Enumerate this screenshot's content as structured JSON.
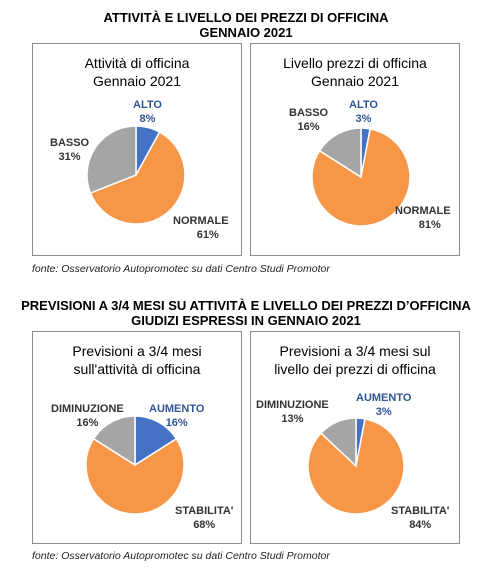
{
  "section1": {
    "title_line1": "ATTIVITÀ E LIVELLO DEI PREZZI DI OFFICINA",
    "title_line2": "GENNAIO 2021",
    "source": "fonte: Osservatorio Autopromotec su dati Centro Studi Promotor"
  },
  "section2": {
    "title_line1": "PREVISIONI A 3/4 MESI SU ATTIVITÀ E LIVELLO DEI PREZZI D’OFFICINA",
    "title_line2": "GIUDIZI ESPRESSI IN GENNAIO 2021",
    "source": "fonte: Osservatorio Autopromotec su dati Centro Studi Promotor"
  },
  "colors": {
    "blue": "#4472c4",
    "orange": "#f79646",
    "gray": "#a5a5a5"
  },
  "chart_data": [
    {
      "type": "pie",
      "title_line1": "Attività di officina",
      "title_line2": "Gennaio 2021",
      "slices": [
        {
          "label": "ALTO",
          "value": 8,
          "value_label": "8%",
          "color": "#4472c4"
        },
        {
          "label": "NORMALE",
          "value": 61,
          "value_label": "61%",
          "color": "#f79646"
        },
        {
          "label": "BASSO",
          "value": 31,
          "value_label": "31%",
          "color": "#a5a5a5"
        }
      ]
    },
    {
      "type": "pie",
      "title_line1": "Livello prezzi di officina",
      "title_line2": "Gennaio 2021",
      "slices": [
        {
          "label": "ALTO",
          "value": 3,
          "value_label": "3%",
          "color": "#4472c4"
        },
        {
          "label": "NORMALE",
          "value": 81,
          "value_label": "81%",
          "color": "#f79646"
        },
        {
          "label": "BASSO",
          "value": 16,
          "value_label": "16%",
          "color": "#a5a5a5"
        }
      ]
    },
    {
      "type": "pie",
      "title_line1": "Previsioni a 3/4 mesi",
      "title_line2": "sull'attività di officina",
      "slices": [
        {
          "label": "AUMENTO",
          "value": 16,
          "value_label": "16%",
          "color": "#4472c4"
        },
        {
          "label": "STABILITA'",
          "value": 68,
          "value_label": "68%",
          "color": "#f79646"
        },
        {
          "label": "DIMINUZIONE",
          "value": 16,
          "value_label": "16%",
          "color": "#a5a5a5"
        }
      ]
    },
    {
      "type": "pie",
      "title_line1": "Previsioni a 3/4 mesi sul",
      "title_line2": "livello dei prezzi di officina",
      "slices": [
        {
          "label": "AUMENTO",
          "value": 3,
          "value_label": "3%",
          "color": "#4472c4"
        },
        {
          "label": "STABILITA'",
          "value": 84,
          "value_label": "84%",
          "color": "#f79646"
        },
        {
          "label": "DIMINUZIONE",
          "value": 13,
          "value_label": "13%",
          "color": "#a5a5a5"
        }
      ]
    }
  ]
}
